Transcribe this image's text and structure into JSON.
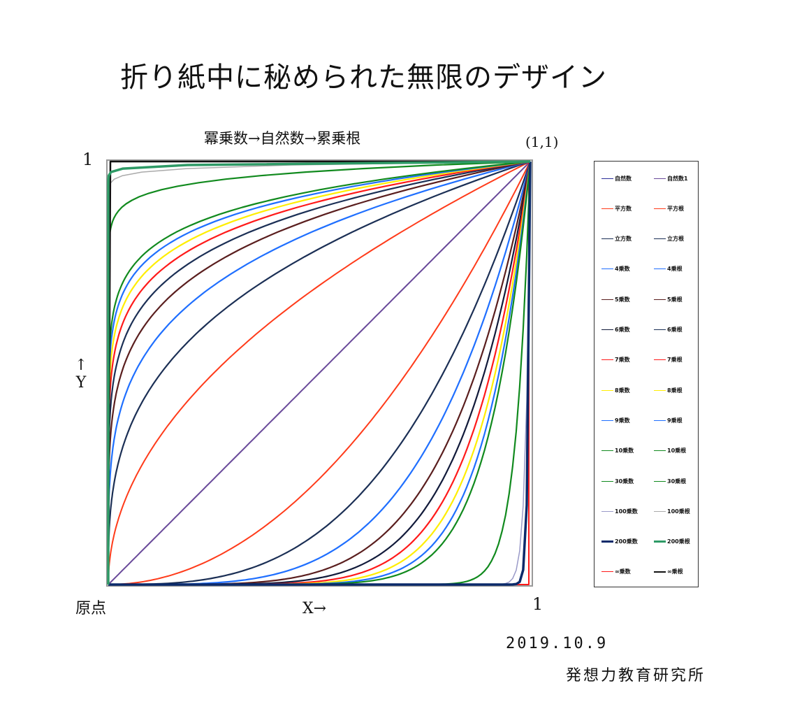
{
  "header": {
    "title": "折り紙中に秘められた無限のデザイン",
    "subtitle": "冪乗数→自然数→累乗根",
    "corner_label": "(1,1)"
  },
  "axes": {
    "y_max_label": "1",
    "y_label": "↑\nY",
    "y_arrow": "↑",
    "y_letter": "Y",
    "origin_label": "原点",
    "x_label": "X→",
    "x_max_label": "1"
  },
  "footer": {
    "date": "2019.10.9",
    "organization": "発想力教育研究所"
  },
  "chart_data": {
    "type": "line",
    "title": "冪乗数→自然数→累乗根",
    "xlabel": "X→",
    "ylabel": "Y↑",
    "xlim": [
      0,
      1
    ],
    "ylim": [
      0,
      1
    ],
    "grid": false,
    "legend_position": "right",
    "annotations": [
      "原点",
      "(1,1)",
      "1",
      "1"
    ],
    "x": [
      0,
      0.1,
      0.2,
      0.3,
      0.4,
      0.5,
      0.6,
      0.7,
      0.8,
      0.9,
      1.0
    ],
    "series": [
      {
        "name": "自然数",
        "exponent": 1,
        "color": "#2b2f9a",
        "width": 1.5
      },
      {
        "name": "自然数1",
        "exponent": 1,
        "color": "#6a4a9a",
        "width": 2
      },
      {
        "name": "平方数",
        "exponent": 2,
        "color": "#ff3b1a",
        "width": 2
      },
      {
        "name": "平方根",
        "exponent": 0.5,
        "color": "#ff3b1a",
        "width": 2
      },
      {
        "name": "立方数",
        "exponent": 3,
        "color": "#1b2f55",
        "width": 2.2
      },
      {
        "name": "立方根",
        "exponent": 0.3333,
        "color": "#1b2f55",
        "width": 2.2
      },
      {
        "name": "4乗数",
        "exponent": 4,
        "color": "#1f6fff",
        "width": 2.2
      },
      {
        "name": "4乗根",
        "exponent": 0.25,
        "color": "#1f6fff",
        "width": 2.2
      },
      {
        "name": "5乗数",
        "exponent": 5,
        "color": "#5a1e1e",
        "width": 2.2
      },
      {
        "name": "5乗根",
        "exponent": 0.2,
        "color": "#5a1e1e",
        "width": 2.2
      },
      {
        "name": "6乗数",
        "exponent": 6,
        "color": "#111a3a",
        "width": 2.2
      },
      {
        "name": "6乗根",
        "exponent": 0.1667,
        "color": "#1b2f55",
        "width": 2.2
      },
      {
        "name": "7乗数",
        "exponent": 7,
        "color": "#ff1a1a",
        "width": 2.2
      },
      {
        "name": "7乗根",
        "exponent": 0.1429,
        "color": "#ff1a1a",
        "width": 2.2
      },
      {
        "name": "8乗数",
        "exponent": 8,
        "color": "#ffee00",
        "width": 2.2
      },
      {
        "name": "8乗根",
        "exponent": 0.125,
        "color": "#ffee00",
        "width": 2.2
      },
      {
        "name": "9乗数",
        "exponent": 9,
        "color": "#1f6fff",
        "width": 2.2
      },
      {
        "name": "9乗根",
        "exponent": 0.1111,
        "color": "#1f6fff",
        "width": 2.2
      },
      {
        "name": "10乗数",
        "exponent": 10,
        "color": "#118a1e",
        "width": 2.2
      },
      {
        "name": "10乗根",
        "exponent": 0.1,
        "color": "#118a1e",
        "width": 2.2
      },
      {
        "name": "30乗数",
        "exponent": 30,
        "color": "#118a1e",
        "width": 2.2
      },
      {
        "name": "30乗根",
        "exponent": 0.0333,
        "color": "#118a1e",
        "width": 2.2
      },
      {
        "name": "100乗数",
        "exponent": 100,
        "color": "#9a9ac8",
        "width": 1.5
      },
      {
        "name": "100乗根",
        "exponent": 0.01,
        "color": "#aaaaaa",
        "width": 1.5
      },
      {
        "name": "200乗数",
        "exponent": 200,
        "color": "#0b2a6a",
        "width": 3.5
      },
      {
        "name": "200乗根",
        "exponent": 0.005,
        "color": "#2e9a66",
        "width": 3.5
      },
      {
        "name": "∞乗数",
        "exponent": "infinity",
        "color": "#ff1a1a",
        "width": 2
      },
      {
        "name": "∞乗根",
        "exponent": "zero",
        "color": "#111111",
        "width": 2.5
      }
    ]
  },
  "legend": {
    "rows": [
      {
        "left": "自然数",
        "right": "自然数1"
      },
      {
        "left": "平方数",
        "right": "平方根"
      },
      {
        "left": "立方数",
        "right": "立方根"
      },
      {
        "left": "4乗数",
        "right": "4乗根"
      },
      {
        "left": "5乗数",
        "right": "5乗根"
      },
      {
        "left": "6乗数",
        "right": "6乗根"
      },
      {
        "left": "7乗数",
        "right": "7乗根"
      },
      {
        "left": "8乗数",
        "right": "8乗根"
      },
      {
        "left": "9乗数",
        "right": "9乗根"
      },
      {
        "left": "10乗数",
        "right": "10乗根"
      },
      {
        "left": "30乗数",
        "right": "30乗根"
      },
      {
        "left": "100乗数",
        "right": "100乗根"
      },
      {
        "left": "200乗数",
        "right": "200乗根"
      },
      {
        "left": "∞乗数",
        "right": "∞乗根"
      }
    ]
  }
}
